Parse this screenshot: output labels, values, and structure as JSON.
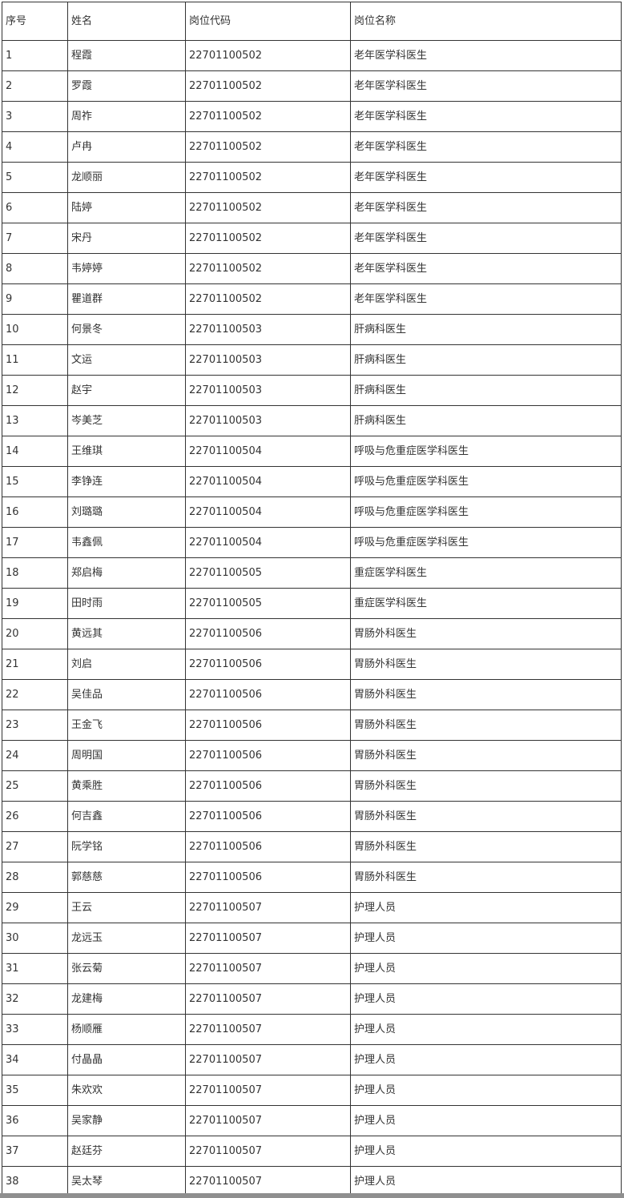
{
  "page": {
    "background": "#ffffff",
    "border_color": "#333333",
    "text_color": "#333333",
    "bottom_bar_color": "#8f8f8f"
  },
  "table": {
    "columns": [
      "序号",
      "姓名",
      "岗位代码",
      "岗位名称"
    ],
    "rows": [
      [
        "1",
        "程霞",
        "22701100502",
        "老年医学科医生"
      ],
      [
        "2",
        "罗霞",
        "22701100502",
        "老年医学科医生"
      ],
      [
        "3",
        "周祚",
        "22701100502",
        "老年医学科医生"
      ],
      [
        "4",
        "卢冉",
        "22701100502",
        "老年医学科医生"
      ],
      [
        "5",
        "龙顺丽",
        "22701100502",
        "老年医学科医生"
      ],
      [
        "6",
        "陆婷",
        "22701100502",
        "老年医学科医生"
      ],
      [
        "7",
        "宋丹",
        "22701100502",
        "老年医学科医生"
      ],
      [
        "8",
        "韦婷婷",
        "22701100502",
        "老年医学科医生"
      ],
      [
        "9",
        "瞿道群",
        "22701100502",
        "老年医学科医生"
      ],
      [
        "10",
        "何景冬",
        "22701100503",
        "肝病科医生"
      ],
      [
        "11",
        "文运",
        "22701100503",
        "肝病科医生"
      ],
      [
        "12",
        "赵宇",
        "22701100503",
        "肝病科医生"
      ],
      [
        "13",
        "岑美芝",
        "22701100503",
        "肝病科医生"
      ],
      [
        "14",
        "王维琪",
        "22701100504",
        "呼吸与危重症医学科医生"
      ],
      [
        "15",
        "李铮连",
        "22701100504",
        "呼吸与危重症医学科医生"
      ],
      [
        "16",
        "刘璐璐",
        "22701100504",
        "呼吸与危重症医学科医生"
      ],
      [
        "17",
        "韦鑫佩",
        "22701100504",
        "呼吸与危重症医学科医生"
      ],
      [
        "18",
        "郑启梅",
        "22701100505",
        "重症医学科医生"
      ],
      [
        "19",
        "田时雨",
        "22701100505",
        "重症医学科医生"
      ],
      [
        "20",
        "黄远其",
        "22701100506",
        "胃肠外科医生"
      ],
      [
        "21",
        "刘启",
        "22701100506",
        "胃肠外科医生"
      ],
      [
        "22",
        "吴佳品",
        "22701100506",
        "胃肠外科医生"
      ],
      [
        "23",
        "王金飞",
        "22701100506",
        "胃肠外科医生"
      ],
      [
        "24",
        "周明国",
        "22701100506",
        "胃肠外科医生"
      ],
      [
        "25",
        "黄乘胜",
        "22701100506",
        "胃肠外科医生"
      ],
      [
        "26",
        "何吉鑫",
        "22701100506",
        "胃肠外科医生"
      ],
      [
        "27",
        "阮学铭",
        "22701100506",
        "胃肠外科医生"
      ],
      [
        "28",
        "郭慈慈",
        "22701100506",
        "胃肠外科医生"
      ],
      [
        "29",
        "王云",
        "22701100507",
        "护理人员"
      ],
      [
        "30",
        "龙远玉",
        "22701100507",
        "护理人员"
      ],
      [
        "31",
        "张云菊",
        "22701100507",
        "护理人员"
      ],
      [
        "32",
        "龙建梅",
        "22701100507",
        "护理人员"
      ],
      [
        "33",
        "杨顺雁",
        "22701100507",
        "护理人员"
      ],
      [
        "34",
        "付晶晶",
        "22701100507",
        "护理人员"
      ],
      [
        "35",
        "朱欢欢",
        "22701100507",
        "护理人员"
      ],
      [
        "36",
        "吴家静",
        "22701100507",
        "护理人员"
      ],
      [
        "37",
        "赵廷芬",
        "22701100507",
        "护理人员"
      ],
      [
        "38",
        "吴太琴",
        "22701100507",
        "护理人员"
      ]
    ]
  }
}
